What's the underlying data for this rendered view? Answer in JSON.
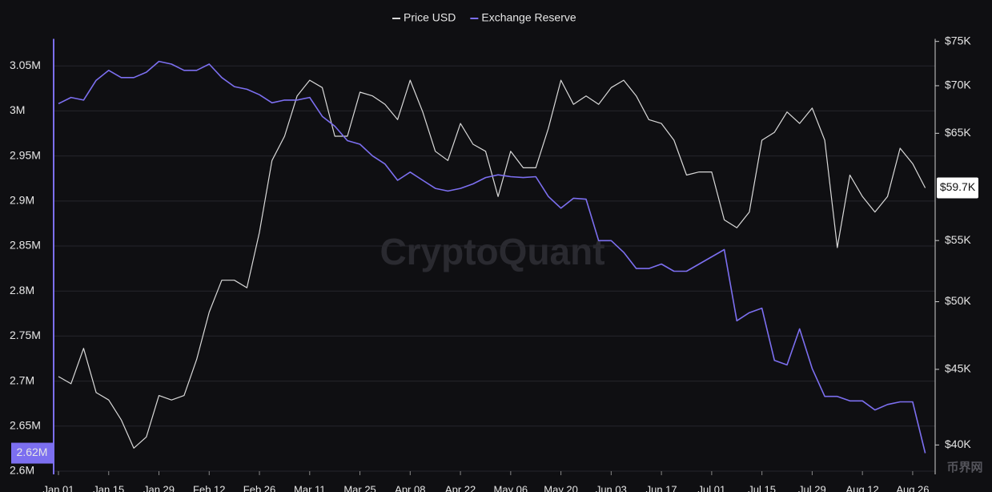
{
  "chart_data": {
    "type": "line",
    "watermark": "CryptoQuant",
    "logo": "币界网",
    "legend": "top",
    "categories": [
      "Jan 01",
      null,
      null,
      null,
      "Jan 15",
      null,
      null,
      null,
      "Jan 29",
      null,
      null,
      null,
      "Feb 12",
      null,
      null,
      null,
      "Feb 26",
      null,
      null,
      null,
      "Mar 11",
      null,
      null,
      null,
      "Mar 25",
      null,
      null,
      null,
      "Apr 08",
      null,
      null,
      null,
      "Apr 22",
      null,
      null,
      null,
      "May 06",
      null,
      null,
      null,
      "May 20",
      null,
      null,
      null,
      "Jun 03",
      null,
      null,
      null,
      "Jun 17",
      null,
      null,
      null,
      "Jul 01",
      null,
      null,
      null,
      "Jul 15",
      null,
      null,
      null,
      "Jul 29",
      null,
      null,
      null,
      "Aug 12",
      null,
      null,
      null,
      "Aug 26",
      null
    ],
    "series": [
      {
        "name": "Price USD",
        "color": "#d9d9d9",
        "axis": "y2",
        "values": [
          44500,
          44000,
          46500,
          43400,
          42900,
          41600,
          39800,
          40500,
          43200,
          42900,
          43200,
          45700,
          49200,
          51700,
          51700,
          51100,
          55700,
          62300,
          64700,
          68900,
          70600,
          69800,
          64700,
          64700,
          69300,
          68900,
          68000,
          66400,
          70600,
          67200,
          63200,
          62300,
          66000,
          63900,
          63200,
          58900,
          63200,
          61600,
          61600,
          65500,
          70600,
          68000,
          68900,
          68000,
          69800,
          70600,
          68900,
          66400,
          66000,
          64300,
          60900,
          61200,
          61200,
          56800,
          56100,
          57500,
          64300,
          65100,
          67200,
          66000,
          67600,
          64300,
          54400,
          60900,
          58900,
          57500,
          58900,
          63500,
          62000,
          59700
        ]
      },
      {
        "name": "Exchange Reserve",
        "color": "#7c6ff0",
        "values": [
          3008000,
          3015000,
          3012000,
          3034000,
          3045000,
          3037000,
          3037000,
          3043000,
          3055000,
          3052000,
          3045000,
          3045000,
          3052000,
          3037000,
          3027000,
          3024000,
          3018000,
          3009000,
          3012000,
          3012000,
          3015000,
          2994000,
          2983000,
          2967000,
          2963000,
          2950000,
          2941000,
          2923000,
          2932000,
          2923000,
          2914000,
          2911000,
          2914000,
          2919000,
          2926000,
          2929000,
          2927000,
          2926000,
          2927000,
          2905000,
          2892000,
          2903000,
          2902000,
          2856000,
          2856000,
          2843000,
          2825000,
          2825000,
          2830000,
          2822000,
          2822000,
          2830000,
          2838000,
          2846000,
          2767000,
          2776000,
          2781000,
          2723000,
          2718000,
          2758000,
          2714000,
          2683000,
          2683000,
          2678000,
          2678000,
          2668000,
          2674000,
          2677000,
          2677000,
          2620000
        ]
      }
    ],
    "ylim": [
      2600000,
      3080000
    ],
    "yticks": [
      {
        "value": 2600000,
        "label": "2.6M"
      },
      {
        "value": 2650000,
        "label": "2.65M"
      },
      {
        "value": 2700000,
        "label": "2.7M"
      },
      {
        "value": 2750000,
        "label": "2.75M"
      },
      {
        "value": 2800000,
        "label": "2.8M"
      },
      {
        "value": 2850000,
        "label": "2.85M"
      },
      {
        "value": 2900000,
        "label": "2.9M"
      },
      {
        "value": 2950000,
        "label": "2.95M"
      },
      {
        "value": 3000000,
        "label": "3M"
      },
      {
        "value": 3050000,
        "label": "3.05M"
      }
    ],
    "y2lim": [
      38400,
      75300
    ],
    "y2log": true,
    "y2ticks": [
      {
        "value": 40000,
        "label": "$40K"
      },
      {
        "value": 45000,
        "label": "$45K"
      },
      {
        "value": 50000,
        "label": "$50K"
      },
      {
        "value": 55000,
        "label": "$55K"
      },
      {
        "value": 65000,
        "label": "$65K"
      },
      {
        "value": 70000,
        "label": "$70K"
      },
      {
        "value": 75000,
        "label": "$75K"
      }
    ],
    "y_current": {
      "value": 2620000,
      "label": "2.62M"
    },
    "y2_current": {
      "value": 59700,
      "label": "$59.7K"
    },
    "grid": true
  }
}
